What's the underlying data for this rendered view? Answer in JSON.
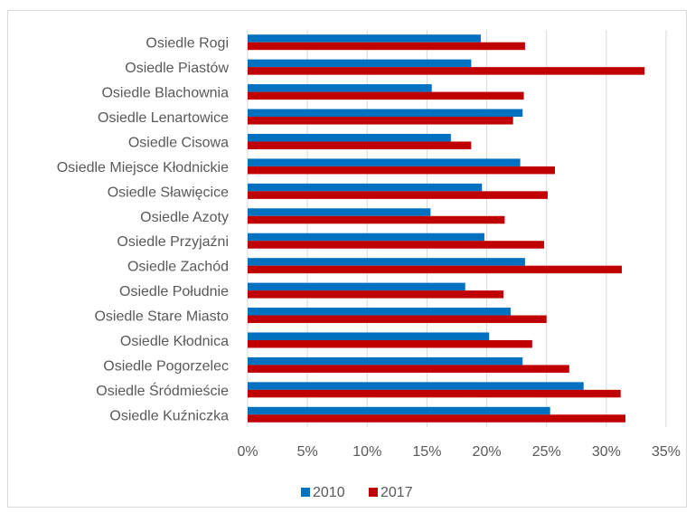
{
  "chart_data": {
    "type": "bar",
    "orientation": "horizontal",
    "categories": [
      "Osiedle Rogi",
      "Osiedle Piastów",
      "Osiedle Blachownia",
      "Osiedle Lenartowice",
      "Osiedle Cisowa",
      "Osiedle Miejsce Kłodnickie",
      "Osiedle Sławięcice",
      "Osiedle Azoty",
      "Osiedle Przyjaźni",
      "Osiedle Zachód",
      "Osiedle Południe",
      "Osiedle Stare Miasto",
      "Osiedle Kłodnica",
      "Osiedle Pogorzelec",
      "Osiedle Śródmieście",
      "Osiedle Kuźniczka"
    ],
    "series": [
      {
        "name": "2010",
        "color": "#0070C0",
        "values": [
          19.5,
          18.7,
          15.4,
          23.0,
          17.0,
          22.8,
          19.6,
          15.3,
          19.8,
          23.2,
          18.2,
          22.0,
          20.2,
          23.0,
          28.1,
          25.3
        ]
      },
      {
        "name": "2017",
        "color": "#C00000",
        "values": [
          23.2,
          33.2,
          23.1,
          22.2,
          18.7,
          25.7,
          25.1,
          21.5,
          24.8,
          31.3,
          21.4,
          25.0,
          23.8,
          26.9,
          31.2,
          31.6
        ]
      }
    ],
    "xlim": [
      0,
      35
    ],
    "xticks": [
      "0%",
      "5%",
      "10%",
      "15%",
      "20%",
      "25%",
      "30%",
      "35%"
    ],
    "xtick_values": [
      0,
      5,
      10,
      15,
      20,
      25,
      30,
      35
    ],
    "grid": "vertical",
    "legend_position": "bottom",
    "title": "",
    "xlabel": "",
    "ylabel": ""
  }
}
